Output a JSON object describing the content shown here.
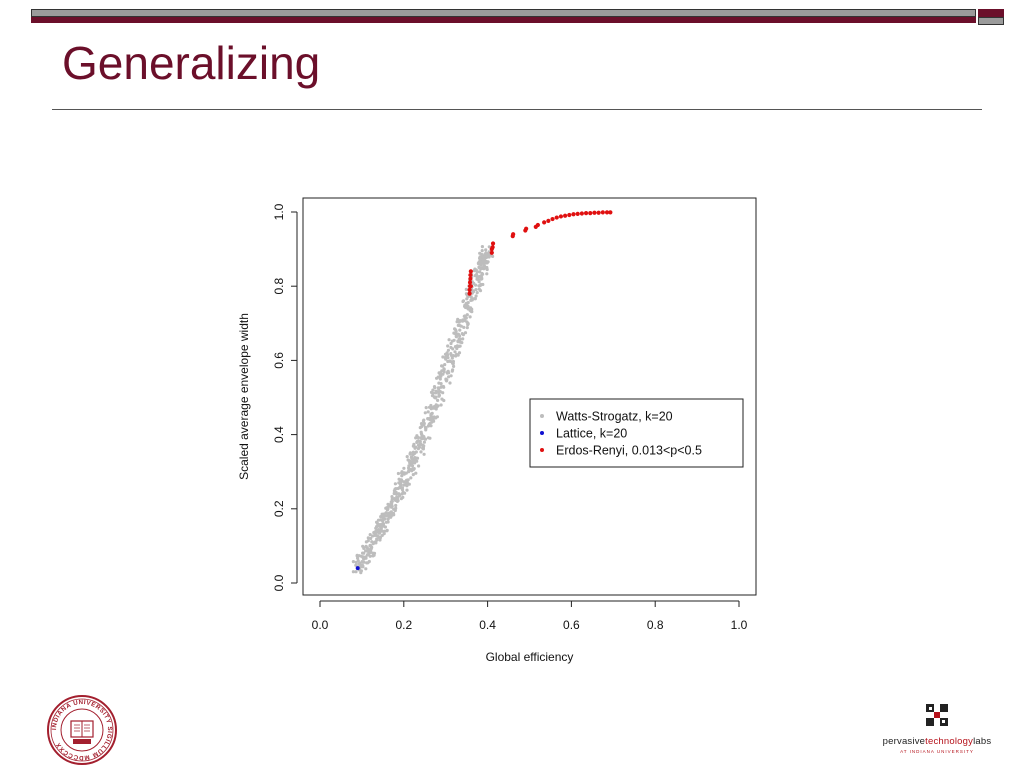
{
  "slide": {
    "title": "Generalizing",
    "brand_color": "#6b0f2a",
    "accent_gray": "#9b9b9b"
  },
  "logos": {
    "left": {
      "name": "indiana-university-seal",
      "text": "INDIANA UNIVERSITY SIGILLUM MDCCCXX"
    },
    "right": {
      "name_prefix": "pervasive",
      "name_mid": "technology",
      "name_suffix": "labs",
      "subtitle": "AT INDIANA UNIVERSITY"
    }
  },
  "chart_data": {
    "type": "scatter",
    "xlabel": "Global efficiency",
    "ylabel": "Scaled average envelope width",
    "xlim": [
      0,
      1
    ],
    "ylim": [
      0,
      1
    ],
    "xticks": [
      "0.0",
      "0.2",
      "0.4",
      "0.6",
      "0.8",
      "1.0"
    ],
    "yticks": [
      "0.0",
      "0.2",
      "0.4",
      "0.6",
      "0.8",
      "1.0"
    ],
    "grid": false,
    "legend_position": "center-right",
    "series": [
      {
        "name": "Watts-Strogatz, k=20",
        "color": "#bdbdbd",
        "trend": [
          [
            0.09,
            0.04
          ],
          [
            0.12,
            0.09
          ],
          [
            0.15,
            0.16
          ],
          [
            0.18,
            0.22
          ],
          [
            0.21,
            0.3
          ],
          [
            0.24,
            0.38
          ],
          [
            0.27,
            0.47
          ],
          [
            0.3,
            0.57
          ],
          [
            0.33,
            0.67
          ],
          [
            0.36,
            0.77
          ],
          [
            0.385,
            0.85
          ],
          [
            0.4,
            0.9
          ]
        ],
        "spread": 0.02
      },
      {
        "name": "Lattice, k=20",
        "color": "#1010d0",
        "points": [
          [
            0.09,
            0.04
          ]
        ]
      },
      {
        "name": "Erdos-Renyi, 0.013<p<0.5",
        "color": "#e01010",
        "points": [
          [
            0.357,
            0.78
          ],
          [
            0.357,
            0.79
          ],
          [
            0.358,
            0.8
          ],
          [
            0.358,
            0.81
          ],
          [
            0.359,
            0.82
          ],
          [
            0.359,
            0.83
          ],
          [
            0.36,
            0.8
          ],
          [
            0.36,
            0.84
          ],
          [
            0.41,
            0.89
          ],
          [
            0.41,
            0.9
          ],
          [
            0.412,
            0.905
          ],
          [
            0.413,
            0.915
          ],
          [
            0.46,
            0.935
          ],
          [
            0.461,
            0.94
          ],
          [
            0.49,
            0.95
          ],
          [
            0.492,
            0.955
          ],
          [
            0.515,
            0.96
          ],
          [
            0.52,
            0.965
          ],
          [
            0.535,
            0.972
          ],
          [
            0.545,
            0.976
          ],
          [
            0.555,
            0.981
          ],
          [
            0.565,
            0.985
          ],
          [
            0.575,
            0.988
          ],
          [
            0.585,
            0.99
          ],
          [
            0.595,
            0.992
          ],
          [
            0.605,
            0.994
          ],
          [
            0.615,
            0.995
          ],
          [
            0.625,
            0.996
          ],
          [
            0.635,
            0.997
          ],
          [
            0.645,
            0.997
          ],
          [
            0.655,
            0.998
          ],
          [
            0.665,
            0.998
          ],
          [
            0.675,
            0.999
          ],
          [
            0.685,
            0.999
          ],
          [
            0.693,
            0.999
          ]
        ]
      }
    ]
  }
}
